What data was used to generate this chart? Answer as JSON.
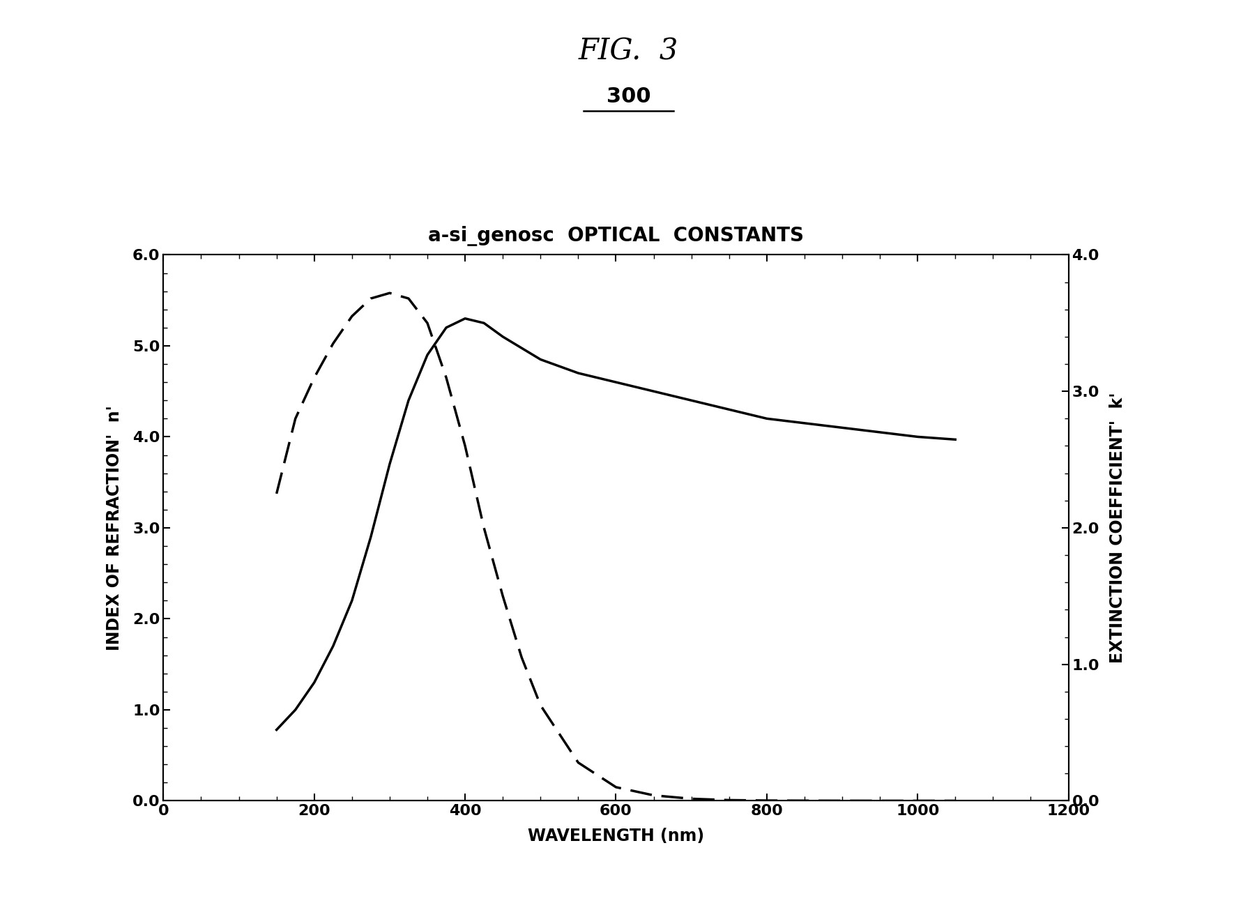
{
  "fig_title": "FIG.  3",
  "fig_label": "300",
  "chart_title": "a-si_genosc  OPTICAL  CONSTANTS",
  "xlabel": "WAVELENGTH (nm)",
  "ylabel_left": "INDEX OF REFRACTION'  n'",
  "ylabel_right": "EXTINCTION COEFFICIENT'  k'",
  "xlim": [
    0,
    1200
  ],
  "ylim_left": [
    0.0,
    6.0
  ],
  "ylim_right": [
    0.0,
    4.0
  ],
  "xticks": [
    0,
    200,
    400,
    600,
    800,
    1000,
    1200
  ],
  "yticks_left": [
    0.0,
    1.0,
    2.0,
    3.0,
    4.0,
    5.0,
    6.0
  ],
  "yticks_right": [
    0.0,
    1.0,
    2.0,
    3.0,
    4.0
  ],
  "n_wavelengths": [
    150,
    175,
    200,
    225,
    250,
    275,
    300,
    325,
    350,
    375,
    400,
    425,
    450,
    500,
    550,
    600,
    650,
    700,
    750,
    800,
    850,
    900,
    950,
    1000,
    1050
  ],
  "n_values": [
    0.78,
    1.0,
    1.3,
    1.7,
    2.2,
    2.9,
    3.7,
    4.4,
    4.9,
    5.2,
    5.3,
    5.25,
    5.1,
    4.85,
    4.7,
    4.6,
    4.5,
    4.4,
    4.3,
    4.2,
    4.15,
    4.1,
    4.05,
    4.0,
    3.97
  ],
  "k_wavelengths": [
    150,
    175,
    200,
    225,
    250,
    275,
    300,
    325,
    350,
    375,
    400,
    425,
    450,
    475,
    500,
    550,
    600,
    650,
    700,
    750,
    800,
    850,
    900,
    950,
    1000,
    1050
  ],
  "k_values": [
    2.25,
    2.8,
    3.1,
    3.35,
    3.55,
    3.68,
    3.72,
    3.68,
    3.5,
    3.1,
    2.6,
    2.0,
    1.5,
    1.05,
    0.7,
    0.28,
    0.1,
    0.04,
    0.015,
    0.005,
    0.002,
    0.001,
    0.0005,
    0.0002,
    0.0001,
    5e-05
  ],
  "line_color": "#000000",
  "background_color": "#ffffff",
  "chart_title_fontsize": 20,
  "axis_label_fontsize": 17,
  "tick_fontsize": 16,
  "fig_title_fontsize": 30,
  "fig_label_fontsize": 22
}
